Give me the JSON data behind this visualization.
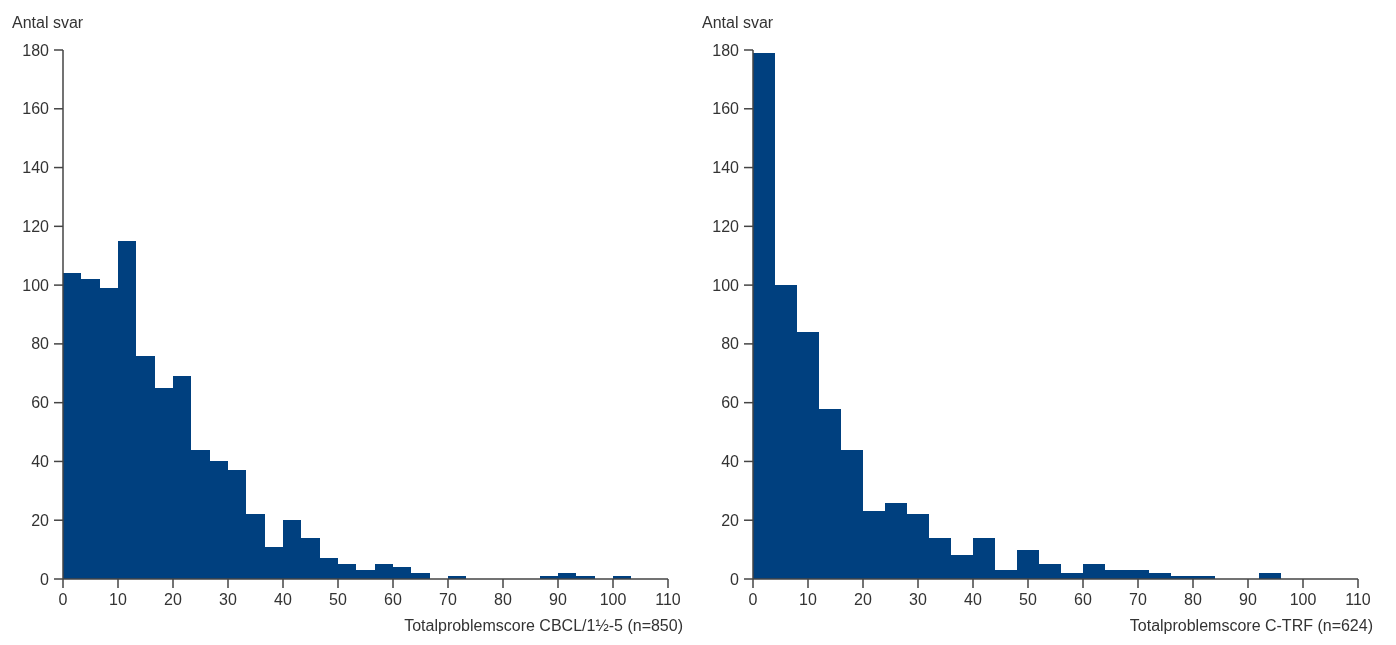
{
  "chart_data": [
    {
      "type": "histogram",
      "ylabel": "Antal svar",
      "xlabel": "Totalproblemscore CBCL/1½-5 (n=850)",
      "color": "#00407f",
      "bins": [
        0,
        3.333,
        6.667,
        10,
        13.333,
        16.667,
        20,
        23.333,
        26.667,
        30,
        33.333,
        36.667,
        40,
        43.333,
        46.667,
        50,
        53.333,
        56.667,
        60,
        63.333,
        66.667,
        70,
        73.333,
        76.667,
        80,
        83.333,
        86.667,
        90,
        93.333,
        96.667,
        100,
        103.333
      ],
      "values": [
        104,
        102,
        99,
        115,
        76,
        65,
        69,
        44,
        40,
        37,
        22,
        11,
        20,
        14,
        7,
        5,
        3,
        5,
        4,
        2,
        0,
        1,
        0,
        0,
        0,
        0,
        1,
        2,
        1,
        0,
        1
      ],
      "xlim": [
        0,
        110
      ],
      "xticks": [
        0,
        10,
        20,
        30,
        40,
        50,
        60,
        70,
        80,
        90,
        100,
        110
      ],
      "ylim": [
        0,
        180
      ],
      "yticks": [
        0,
        20,
        40,
        60,
        80,
        100,
        120,
        140,
        160,
        180
      ],
      "grid": false
    },
    {
      "type": "histogram",
      "ylabel": "Antal svar",
      "xlabel": "Totalproblemscore C-TRF (n=624)",
      "color": "#00407f",
      "bins": [
        0,
        4,
        8,
        12,
        16,
        20,
        24,
        28,
        32,
        36,
        40,
        44,
        48,
        52,
        56,
        60,
        64,
        68,
        72,
        76,
        80,
        84,
        88,
        92,
        96
      ],
      "values": [
        179,
        100,
        84,
        58,
        44,
        23,
        26,
        22,
        14,
        8,
        14,
        3,
        10,
        5,
        2,
        5,
        3,
        3,
        2,
        1,
        1,
        0,
        0,
        2
      ],
      "xlim": [
        0,
        110
      ],
      "xticks": [
        0,
        10,
        20,
        30,
        40,
        50,
        60,
        70,
        80,
        90,
        100,
        110
      ],
      "ylim": [
        0,
        180
      ],
      "yticks": [
        0,
        20,
        40,
        60,
        80,
        100,
        120,
        140,
        160,
        180
      ],
      "grid": false
    }
  ]
}
